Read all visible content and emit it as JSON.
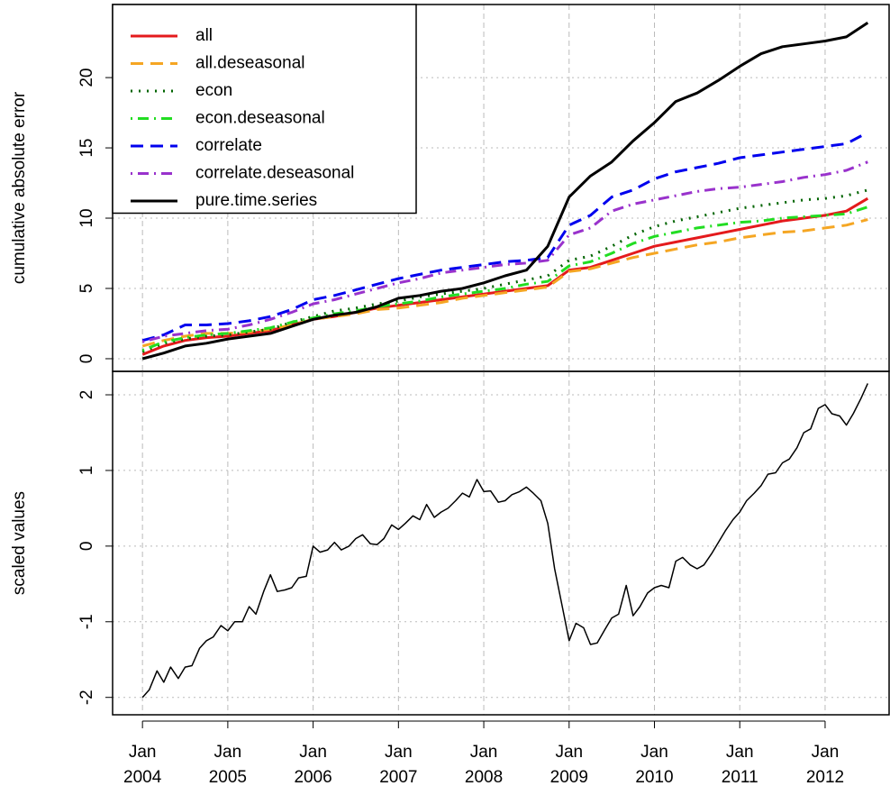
{
  "chart_data": [
    {
      "type": "line",
      "ylabel": "cumulative absolute error",
      "x": [
        2004,
        2004.25,
        2004.5,
        2004.75,
        2005,
        2005.25,
        2005.5,
        2005.75,
        2006,
        2006.25,
        2006.5,
        2006.75,
        2007,
        2007.25,
        2007.5,
        2007.75,
        2008,
        2008.25,
        2008.5,
        2008.75,
        2009,
        2009.25,
        2009.5,
        2009.75,
        2010,
        2010.25,
        2010.5,
        2010.75,
        2011,
        2011.25,
        2011.5,
        2011.75,
        2012,
        2012.25,
        2012.5
      ],
      "series": [
        {
          "name": "all",
          "color": "#e41a1c",
          "linestyle": "solid",
          "values": [
            0.3,
            0.9,
            1.3,
            1.5,
            1.6,
            1.8,
            2.0,
            2.4,
            2.8,
            3.0,
            3.3,
            3.6,
            3.8,
            4.0,
            4.2,
            4.4,
            4.6,
            4.8,
            5.0,
            5.2,
            6.3,
            6.5,
            7.0,
            7.5,
            8.0,
            8.3,
            8.6,
            8.9,
            9.2,
            9.5,
            9.8,
            10.0,
            10.2,
            10.5,
            11.4
          ]
        },
        {
          "name": "all.deseasonal",
          "color": "#f5a623",
          "linestyle": "dashed",
          "values": [
            0.9,
            1.3,
            1.6,
            1.8,
            1.8,
            1.9,
            2.1,
            2.4,
            2.8,
            3.0,
            3.2,
            3.5,
            3.6,
            3.8,
            4.0,
            4.3,
            4.5,
            4.7,
            4.9,
            5.1,
            6.2,
            6.4,
            6.8,
            7.2,
            7.5,
            7.8,
            8.1,
            8.3,
            8.6,
            8.8,
            9.0,
            9.1,
            9.3,
            9.5,
            9.9
          ]
        },
        {
          "name": "econ",
          "color": "#006400",
          "linestyle": "dotted",
          "values": [
            0.5,
            1.1,
            1.4,
            1.6,
            1.7,
            1.9,
            2.1,
            2.6,
            3.0,
            3.4,
            3.6,
            3.9,
            4.1,
            4.4,
            4.6,
            4.8,
            5.0,
            5.3,
            5.6,
            5.9,
            7.0,
            7.3,
            8.0,
            8.8,
            9.4,
            9.8,
            10.1,
            10.4,
            10.7,
            10.9,
            11.1,
            11.3,
            11.4,
            11.6,
            12.0
          ]
        },
        {
          "name": "econ.deseasonal",
          "color": "#22dd22",
          "linestyle": "dotdash",
          "values": [
            0.6,
            1.2,
            1.5,
            1.7,
            1.8,
            2.0,
            2.2,
            2.6,
            2.9,
            3.2,
            3.4,
            3.7,
            3.9,
            4.1,
            4.4,
            4.6,
            4.8,
            5.0,
            5.3,
            5.5,
            6.6,
            6.9,
            7.5,
            8.2,
            8.7,
            9.0,
            9.3,
            9.5,
            9.7,
            9.8,
            10.0,
            10.1,
            10.2,
            10.3,
            10.8
          ]
        },
        {
          "name": "correlate",
          "color": "#0000ee",
          "linestyle": "dashed",
          "values": [
            1.3,
            1.7,
            2.4,
            2.4,
            2.5,
            2.7,
            3.0,
            3.5,
            4.2,
            4.5,
            4.9,
            5.3,
            5.7,
            6.0,
            6.3,
            6.5,
            6.7,
            6.9,
            7.0,
            7.2,
            9.5,
            10.2,
            11.5,
            12.0,
            12.8,
            13.3,
            13.6,
            13.9,
            14.3,
            14.5,
            14.7,
            14.9,
            15.1,
            15.3,
            16.1
          ]
        },
        {
          "name": "correlate.deseasonal",
          "color": "#9932cc",
          "linestyle": "dotdash",
          "values": [
            1.2,
            1.6,
            1.8,
            2.0,
            2.1,
            2.4,
            2.8,
            3.3,
            3.9,
            4.2,
            4.6,
            5.0,
            5.4,
            5.7,
            6.1,
            6.3,
            6.5,
            6.7,
            6.8,
            7.0,
            8.8,
            9.3,
            10.5,
            11.0,
            11.3,
            11.6,
            11.9,
            12.1,
            12.2,
            12.4,
            12.6,
            12.9,
            13.1,
            13.4,
            14.0
          ]
        },
        {
          "name": "pure.time.series",
          "color": "#000000",
          "linestyle": "solid",
          "values": [
            0,
            0.4,
            0.9,
            1.1,
            1.4,
            1.6,
            1.8,
            2.3,
            2.8,
            3.1,
            3.3,
            3.7,
            4.3,
            4.5,
            4.8,
            5.0,
            5.4,
            5.9,
            6.3,
            8.0,
            11.5,
            13.0,
            14.0,
            15.5,
            16.8,
            18.3,
            18.9,
            19.8,
            20.8,
            21.7,
            22.2,
            22.4,
            22.6,
            22.9,
            23.9
          ]
        }
      ],
      "xlim": [
        2003.65,
        2012.75
      ],
      "ylim": [
        -0.9,
        25.2
      ],
      "yticks": [
        0,
        5,
        10,
        15,
        20
      ],
      "grid": true,
      "legend": "top-left"
    },
    {
      "type": "line",
      "ylabel": "scaled values",
      "x": [
        2004,
        2004.08,
        2004.17,
        2004.25,
        2004.33,
        2004.42,
        2004.5,
        2004.58,
        2004.67,
        2004.75,
        2004.83,
        2004.92,
        2005,
        2005.08,
        2005.17,
        2005.25,
        2005.33,
        2005.42,
        2005.5,
        2005.58,
        2005.67,
        2005.75,
        2005.83,
        2005.92,
        2006,
        2006.08,
        2006.17,
        2006.25,
        2006.33,
        2006.42,
        2006.5,
        2006.58,
        2006.67,
        2006.75,
        2006.83,
        2006.92,
        2007,
        2007.08,
        2007.17,
        2007.25,
        2007.33,
        2007.42,
        2007.5,
        2007.58,
        2007.67,
        2007.75,
        2007.83,
        2007.92,
        2008,
        2008.08,
        2008.17,
        2008.25,
        2008.33,
        2008.42,
        2008.5,
        2008.58,
        2008.67,
        2008.75,
        2008.83,
        2008.92,
        2009,
        2009.08,
        2009.17,
        2009.25,
        2009.33,
        2009.42,
        2009.5,
        2009.58,
        2009.67,
        2009.75,
        2009.83,
        2009.92,
        2010,
        2010.08,
        2010.17,
        2010.25,
        2010.33,
        2010.42,
        2010.5,
        2010.58,
        2010.67,
        2010.75,
        2010.83,
        2010.92,
        2011,
        2011.08,
        2011.17,
        2011.25,
        2011.33,
        2011.42,
        2011.5,
        2011.58,
        2011.67,
        2011.75,
        2011.83,
        2011.92,
        2012,
        2012.08,
        2012.17,
        2012.25,
        2012.33,
        2012.42,
        2012.5
      ],
      "series": [
        {
          "color": "#000000",
          "values": [
            -2.0,
            -1.9,
            -1.65,
            -1.8,
            -1.6,
            -1.75,
            -1.6,
            -1.58,
            -1.35,
            -1.25,
            -1.2,
            -1.05,
            -1.12,
            -1.0,
            -1.0,
            -0.8,
            -0.9,
            -0.6,
            -0.38,
            -0.6,
            -0.58,
            -0.55,
            -0.42,
            -0.4,
            0.0,
            -0.08,
            -0.05,
            0.05,
            -0.05,
            0.0,
            0.1,
            0.15,
            0.03,
            0.02,
            0.1,
            0.28,
            0.22,
            0.3,
            0.4,
            0.35,
            0.55,
            0.38,
            0.45,
            0.5,
            0.6,
            0.7,
            0.65,
            0.88,
            0.72,
            0.73,
            0.58,
            0.6,
            0.68,
            0.72,
            0.78,
            0.7,
            0.6,
            0.3,
            -0.3,
            -0.8,
            -1.25,
            -1.02,
            -1.08,
            -1.3,
            -1.28,
            -1.1,
            -0.95,
            -0.9,
            -0.52,
            -0.92,
            -0.8,
            -0.62,
            -0.55,
            -0.52,
            -0.55,
            -0.2,
            -0.15,
            -0.25,
            -0.3,
            -0.25,
            -0.1,
            0.05,
            0.2,
            0.35,
            0.45,
            0.6,
            0.7,
            0.8,
            0.95,
            0.97,
            1.1,
            1.15,
            1.3,
            1.5,
            1.55,
            1.82,
            1.87,
            1.75,
            1.72,
            1.6,
            1.75,
            1.95,
            2.15
          ]
        }
      ],
      "xlim": [
        2003.65,
        2012.75
      ],
      "ylim": [
        -2.23,
        2.31
      ],
      "yticks": [
        -2,
        -1,
        0,
        1,
        2
      ],
      "xticks": [
        {
          "value": 2004,
          "label": [
            "Jan",
            "2004"
          ]
        },
        {
          "value": 2005,
          "label": [
            "Jan",
            "2005"
          ]
        },
        {
          "value": 2006,
          "label": [
            "Jan",
            "2006"
          ]
        },
        {
          "value": 2007,
          "label": [
            "Jan",
            "2007"
          ]
        },
        {
          "value": 2008,
          "label": [
            "Jan",
            "2008"
          ]
        },
        {
          "value": 2009,
          "label": [
            "Jan",
            "2009"
          ]
        },
        {
          "value": 2010,
          "label": [
            "Jan",
            "2010"
          ]
        },
        {
          "value": 2011,
          "label": [
            "Jan",
            "2011"
          ]
        },
        {
          "value": 2012,
          "label": [
            "Jan",
            "2012"
          ]
        }
      ],
      "grid": true
    }
  ]
}
